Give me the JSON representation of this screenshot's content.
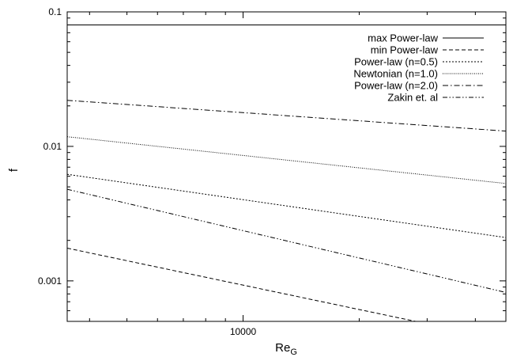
{
  "chart_data": {
    "type": "line",
    "title": "",
    "xlabel": "Re",
    "xlabel_sub": "G",
    "ylabel": "f",
    "xscale": "log",
    "yscale": "log",
    "xlim": [
      3500,
      48000
    ],
    "ylim": [
      0.0005,
      0.1
    ],
    "x_ticks": [
      {
        "value": 10000,
        "label": "10000"
      }
    ],
    "y_ticks": [
      {
        "value": 0.1,
        "label": "0.1"
      },
      {
        "value": 0.01,
        "label": "0.01"
      },
      {
        "value": 0.001,
        "label": "0.001"
      }
    ],
    "grid": false,
    "legend_position": "top-right",
    "series": [
      {
        "name": "max Power-law",
        "dash": "",
        "x": [
          3500,
          48000
        ],
        "y": [
          0.08,
          0.08
        ]
      },
      {
        "name": "min Power-law",
        "dash": "5,3",
        "x": [
          3500,
          28000
        ],
        "y": [
          0.00175,
          0.0005
        ]
      },
      {
        "name": "Power-law (n=0.5)",
        "dash": "2,2",
        "x": [
          3500,
          48000
        ],
        "y": [
          0.0062,
          0.0021
        ]
      },
      {
        "name": "Newtonian (n=1.0)",
        "dash": "1,1.5",
        "x": [
          3500,
          48000
        ],
        "y": [
          0.0118,
          0.0053
        ]
      },
      {
        "name": "Power-law (n=2.0)",
        "dash": "7,3,1.5,3",
        "x": [
          3500,
          48000
        ],
        "y": [
          0.022,
          0.013
        ]
      },
      {
        "name": "Zakin et. al",
        "dash": "6,2.5,1.5,2.5,1.5,2.5",
        "x": [
          3500,
          48000
        ],
        "y": [
          0.0048,
          0.00082
        ]
      }
    ]
  }
}
